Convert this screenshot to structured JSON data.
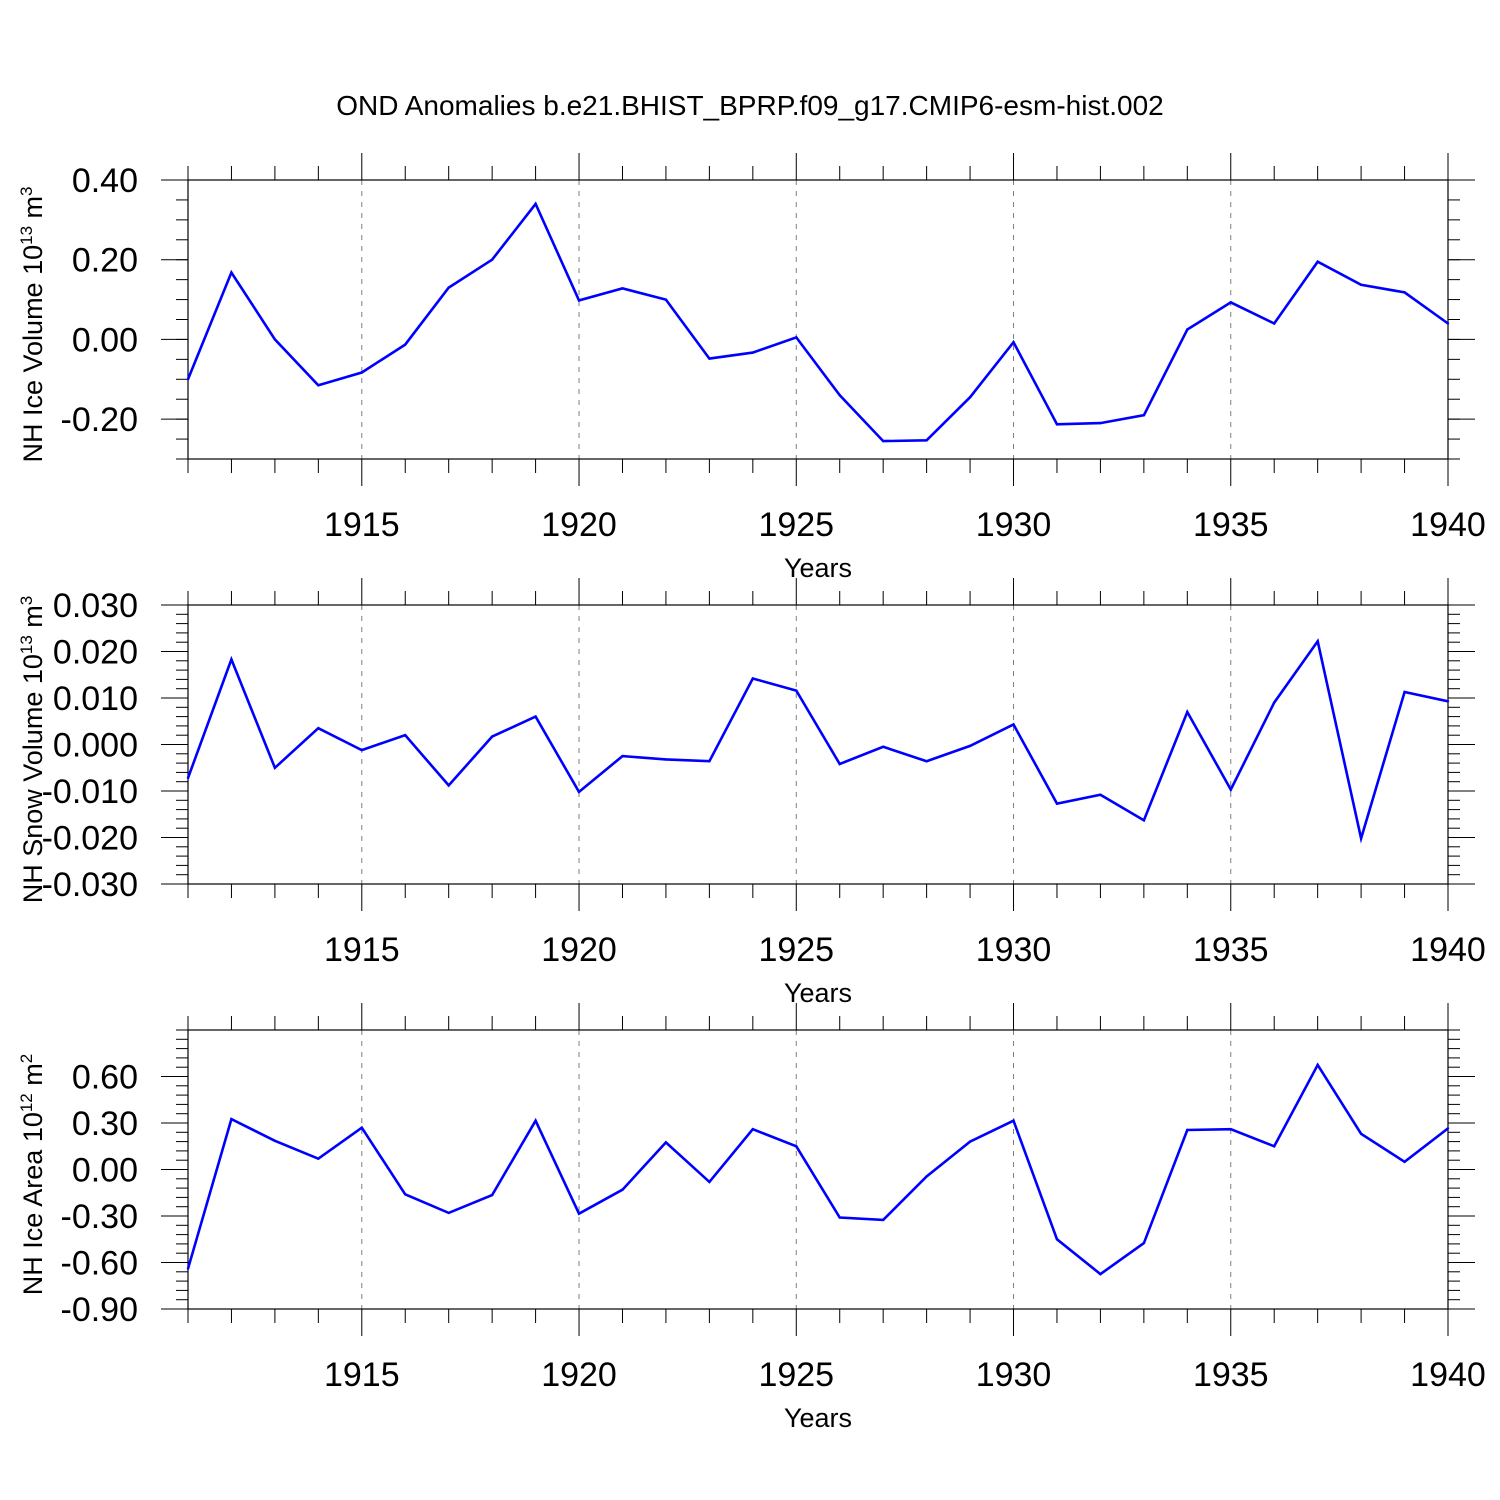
{
  "title": "OND Anomalies b.e21.BHIST_BPRP.f09_g17.CMIP6-esm-hist.002",
  "colors": {
    "line": "#0000ff",
    "axis": "#000000",
    "grid": "#7f7f7f",
    "background": "#ffffff"
  },
  "chart_data": [
    {
      "type": "line",
      "ylabel": {
        "main": "NH Ice Volume 10",
        "sup": "13",
        "unit": " m",
        "unit_sup": "3"
      },
      "xlabel": "Years",
      "xlim": [
        1911,
        1940
      ],
      "ylim": [
        -0.3,
        0.4
      ],
      "xticks": [
        1915,
        1920,
        1925,
        1930,
        1935,
        1940
      ],
      "yticks": [
        -0.2,
        0.0,
        0.2,
        0.4
      ],
      "ytick_labels": [
        "-0.20",
        "0.00",
        "0.20",
        "0.40"
      ],
      "yminor_step": 0.05,
      "grid": "vertical dashed at major x ticks",
      "x": [
        1911,
        1912,
        1913,
        1914,
        1915,
        1916,
        1917,
        1918,
        1919,
        1920,
        1921,
        1922,
        1923,
        1924,
        1925,
        1926,
        1927,
        1928,
        1929,
        1930,
        1931,
        1932,
        1933,
        1934,
        1935,
        1936,
        1937,
        1938,
        1939,
        1940
      ],
      "series": [
        {
          "values": [
            -0.1,
            0.168,
            0.0,
            -0.115,
            -0.083,
            -0.013,
            0.13,
            0.2,
            0.34,
            0.098,
            0.128,
            0.1,
            -0.048,
            -0.033,
            0.005,
            -0.14,
            -0.255,
            -0.253,
            -0.145,
            -0.007,
            -0.213,
            -0.21,
            -0.19,
            0.025,
            0.093,
            0.04,
            0.195,
            0.137,
            0.118,
            0.04
          ]
        }
      ]
    },
    {
      "type": "line",
      "ylabel": {
        "main": "NH Snow Volume 10",
        "sup": "13",
        "unit": " m",
        "unit_sup": "3"
      },
      "xlabel": "Years",
      "xlim": [
        1911,
        1940
      ],
      "ylim": [
        -0.03,
        0.03
      ],
      "xticks": [
        1915,
        1920,
        1925,
        1930,
        1935,
        1940
      ],
      "yticks": [
        -0.03,
        -0.02,
        -0.01,
        0.0,
        0.01,
        0.02,
        0.03
      ],
      "ytick_labels": [
        "-0.030",
        "-0.020",
        "-0.010",
        "0.000",
        "0.010",
        "0.020",
        "0.030"
      ],
      "yminor_step": 0.002,
      "grid": "vertical dashed at major x ticks",
      "x": [
        1911,
        1912,
        1913,
        1914,
        1915,
        1916,
        1917,
        1918,
        1919,
        1920,
        1921,
        1922,
        1923,
        1924,
        1925,
        1926,
        1927,
        1928,
        1929,
        1930,
        1931,
        1932,
        1933,
        1934,
        1935,
        1936,
        1937,
        1938,
        1939,
        1940
      ],
      "series": [
        {
          "values": [
            -0.0072,
            0.0183,
            -0.005,
            0.0035,
            -0.0012,
            0.002,
            -0.0088,
            0.0017,
            0.006,
            -0.0102,
            -0.0025,
            -0.0032,
            -0.0036,
            0.0142,
            0.0116,
            -0.0042,
            -0.0005,
            -0.0036,
            -0.0003,
            0.0043,
            -0.0127,
            -0.0108,
            -0.0163,
            0.007,
            -0.0097,
            0.009,
            0.0222,
            -0.0202,
            0.0113,
            0.0093
          ]
        }
      ]
    },
    {
      "type": "line",
      "ylabel": {
        "main": "NH Ice Area 10",
        "sup": "12",
        "unit": " m",
        "unit_sup": "2"
      },
      "xlabel": "Years",
      "xlim": [
        1911,
        1940
      ],
      "ylim": [
        -0.9,
        0.9
      ],
      "xticks": [
        1915,
        1920,
        1925,
        1930,
        1935,
        1940
      ],
      "yticks": [
        -0.9,
        -0.6,
        -0.3,
        0.0,
        0.3,
        0.6
      ],
      "ytick_labels": [
        "-0.90",
        "-0.60",
        "-0.30",
        "0.00",
        "0.30",
        "0.60"
      ],
      "yminor_step": 0.06,
      "grid": "vertical dashed at major x ticks",
      "x": [
        1911,
        1912,
        1913,
        1914,
        1915,
        1916,
        1917,
        1918,
        1919,
        1920,
        1921,
        1922,
        1923,
        1924,
        1925,
        1926,
        1927,
        1928,
        1929,
        1930,
        1931,
        1932,
        1933,
        1934,
        1935,
        1936,
        1937,
        1938,
        1939,
        1940
      ],
      "series": [
        {
          "values": [
            -0.64,
            0.325,
            0.185,
            0.07,
            0.27,
            -0.16,
            -0.28,
            -0.165,
            0.315,
            -0.285,
            -0.13,
            0.175,
            -0.08,
            0.26,
            0.15,
            -0.31,
            -0.325,
            -0.045,
            0.18,
            0.315,
            -0.45,
            -0.675,
            -0.475,
            0.255,
            0.26,
            0.15,
            0.675,
            0.23,
            0.05,
            0.265
          ]
        }
      ]
    }
  ]
}
